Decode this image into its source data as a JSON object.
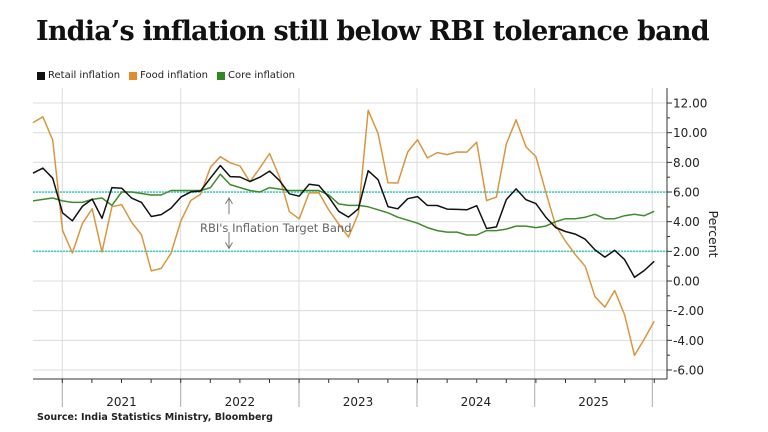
{
  "title": "India’s inflation still below RBI tolerance band",
  "source": "Source: India Statistics Ministry, Bloomberg",
  "colors": {
    "retail": "#111111",
    "food": "#d9963e",
    "core": "#3f8a2e",
    "band": "#3fd0c4",
    "grid": "#d8d8d8"
  },
  "chart_data": {
    "type": "line",
    "title": "India’s inflation still below RBI tolerance band",
    "ylabel": "Percent",
    "ylim": [
      -6.5,
      12.5
    ],
    "yticks": [
      "12.00",
      "10.00",
      "8.00",
      "6.00",
      "4.00",
      "2.00",
      "0.00",
      "-2.00",
      "-4.00",
      "-6.00"
    ],
    "ytick_values": [
      12,
      10,
      8,
      6,
      4,
      2,
      0,
      -2,
      -4,
      -6
    ],
    "xlabels": [
      "2021",
      "2022",
      "2023",
      "2024",
      "2025"
    ],
    "x_start": "2020-09",
    "x_end": "2025-12",
    "grid": true,
    "legend_position": "top-left",
    "band": {
      "lower": 2,
      "upper": 6,
      "label": "RBI's Inflation Target Band"
    },
    "series": [
      {
        "name": "Retail inflation",
        "color": "#111111",
        "values": [
          7.27,
          7.61,
          6.93,
          4.59,
          4.06,
          5.03,
          5.52,
          4.23,
          6.3,
          6.26,
          5.59,
          5.3,
          4.35,
          4.48,
          4.91,
          5.66,
          6.01,
          6.07,
          6.95,
          7.79,
          7.04,
          7.01,
          6.71,
          7.0,
          7.41,
          6.77,
          5.88,
          5.72,
          6.52,
          6.44,
          5.66,
          4.7,
          4.31,
          4.87,
          7.44,
          6.83,
          5.02,
          4.87,
          5.55,
          5.69,
          5.1,
          5.09,
          4.85,
          4.83,
          4.8,
          5.08,
          3.54,
          3.65,
          5.49,
          6.21,
          5.48,
          5.22,
          4.31,
          3.61,
          3.34,
          3.16,
          2.82,
          2.1,
          1.61,
          2.07,
          1.44,
          0.25,
          0.71,
          1.33
        ]
      },
      {
        "name": "Food inflation",
        "color": "#d9963e",
        "values": [
          10.68,
          11.07,
          9.5,
          3.41,
          1.89,
          3.87,
          4.87,
          1.96,
          5.01,
          5.15,
          3.96,
          3.11,
          0.68,
          0.85,
          1.87,
          4.05,
          5.43,
          5.85,
          7.68,
          8.38,
          7.97,
          7.75,
          6.69,
          7.62,
          8.6,
          7.01,
          4.67,
          4.19,
          5.94,
          5.95,
          4.79,
          3.84,
          2.96,
          4.55,
          11.51,
          9.94,
          6.62,
          6.61,
          8.7,
          9.53,
          8.3,
          8.66,
          8.52,
          8.7,
          8.69,
          9.36,
          5.42,
          5.66,
          9.24,
          10.87,
          9.04,
          8.39,
          6.02,
          3.75,
          2.69,
          1.78,
          0.99,
          -1.06,
          -1.76,
          -0.64,
          -2.28,
          -5.02,
          -3.91,
          -2.71
        ]
      },
      {
        "name": "Core inflation",
        "color": "#3f8a2e",
        "values": [
          5.4,
          5.5,
          5.6,
          5.4,
          5.3,
          5.3,
          5.5,
          5.6,
          5.1,
          6.0,
          6.0,
          5.9,
          5.8,
          5.8,
          6.1,
          6.1,
          6.1,
          6.1,
          6.3,
          7.2,
          6.5,
          6.3,
          6.1,
          6.0,
          6.3,
          6.2,
          6.1,
          6.1,
          6.1,
          6.1,
          5.8,
          5.2,
          5.1,
          5.1,
          5.0,
          4.8,
          4.6,
          4.3,
          4.1,
          3.9,
          3.6,
          3.4,
          3.3,
          3.3,
          3.1,
          3.1,
          3.4,
          3.4,
          3.5,
          3.7,
          3.7,
          3.6,
          3.7,
          4.0,
          4.2,
          4.2,
          4.3,
          4.5,
          4.2,
          4.2,
          4.4,
          4.5,
          4.4,
          4.7
        ]
      }
    ]
  }
}
